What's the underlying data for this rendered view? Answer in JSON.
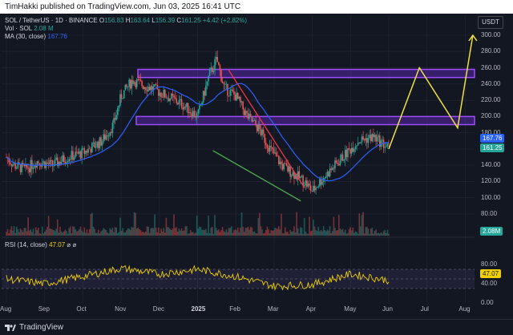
{
  "header": {
    "text": "TimHakki published on TradingView.com, Jun 03, 2025 16:41 UTC"
  },
  "legend": {
    "symbol": "SOL / TetherUS · 1D · BINANCE",
    "o_label": "O",
    "o": "156.83",
    "h_label": "H",
    "h": "163.64",
    "l_label": "L",
    "l": "156.39",
    "c_label": "C",
    "c": "161.25",
    "change": "+4.42 (+2.82%)",
    "vol_label": "Vol · SOL",
    "vol": "2.08 M",
    "ma_label": "MA (30, close)",
    "ma": "167.76"
  },
  "currency": "USDT",
  "price_axis": [
    "300.00",
    "280.00",
    "260.00",
    "240.00",
    "220.00",
    "200.00",
    "180.00",
    "160.00",
    "140.00",
    "120.00",
    "100.00",
    "80.00"
  ],
  "price_tags": {
    "ma": "167.76",
    "close": "161.25",
    "volume": "2.08M",
    "rsi": "47.07"
  },
  "rsi": {
    "label": "RSI (14, close)",
    "value": "47.07",
    "extra": "⌀ ⌀",
    "axis": [
      "80.00",
      "40.00",
      "0.00"
    ]
  },
  "time_axis": [
    "Aug",
    "Sep",
    "Oct",
    "Nov",
    "Dec",
    "2025",
    "Feb",
    "Mar",
    "Apr",
    "May",
    "Jun",
    "Jul",
    "Aug"
  ],
  "footer": {
    "brand": "TradingView"
  },
  "colors": {
    "up": "#26a69a",
    "down": "#ef5350",
    "ma": "#2962ff",
    "zone": "#7b2ff7",
    "projection": "#f0e040",
    "rsi": "#f0d000",
    "bg": "#131722"
  },
  "chart_data": {
    "type": "candlestick",
    "ylim": [
      60,
      305
    ],
    "ma_period": 30,
    "x": [
      "Aug",
      "Sep",
      "Oct",
      "Nov",
      "Dec",
      "2025",
      "Feb",
      "Mar",
      "Apr",
      "May",
      "Jun",
      "Jul",
      "Aug"
    ],
    "price_path": [
      [
        0,
        150
      ],
      [
        0.2,
        140
      ],
      [
        0.5,
        135
      ],
      [
        0.8,
        145
      ],
      [
        1.2,
        140
      ],
      [
        1.6,
        150
      ],
      [
        2.0,
        155
      ],
      [
        2.5,
        170
      ],
      [
        2.8,
        190
      ],
      [
        3.0,
        225
      ],
      [
        3.3,
        245
      ],
      [
        3.5,
        240
      ],
      [
        3.8,
        235
      ],
      [
        4.2,
        225
      ],
      [
        4.6,
        215
      ],
      [
        5.0,
        200
      ],
      [
        5.3,
        250
      ],
      [
        5.5,
        270
      ],
      [
        5.7,
        235
      ],
      [
        6.0,
        225
      ],
      [
        6.3,
        200
      ],
      [
        6.6,
        185
      ],
      [
        6.9,
        160
      ],
      [
        7.2,
        140
      ],
      [
        7.5,
        130
      ],
      [
        7.8,
        120
      ],
      [
        8.0,
        108
      ],
      [
        8.2,
        120
      ],
      [
        8.5,
        135
      ],
      [
        8.8,
        150
      ],
      [
        9.2,
        170
      ],
      [
        9.6,
        175
      ],
      [
        10.0,
        161
      ]
    ],
    "resistance_zones": [
      [
        248,
        258
      ],
      [
        190,
        200
      ]
    ],
    "projection": [
      [
        10.0,
        160
      ],
      [
        10.8,
        260
      ],
      [
        11.8,
        186
      ],
      [
        12.2,
        300
      ]
    ],
    "wedge_top": [
      [
        5.8,
        258
      ],
      [
        7.8,
        112
      ]
    ],
    "wedge_bottom": [
      [
        5.4,
        158
      ],
      [
        7.7,
        96
      ]
    ],
    "rsi_path": [
      [
        0,
        50
      ],
      [
        1,
        40
      ],
      [
        2,
        55
      ],
      [
        3,
        72
      ],
      [
        4,
        60
      ],
      [
        5,
        70
      ],
      [
        6,
        55
      ],
      [
        7,
        35
      ],
      [
        8,
        38
      ],
      [
        9,
        60
      ],
      [
        10,
        47
      ]
    ]
  }
}
